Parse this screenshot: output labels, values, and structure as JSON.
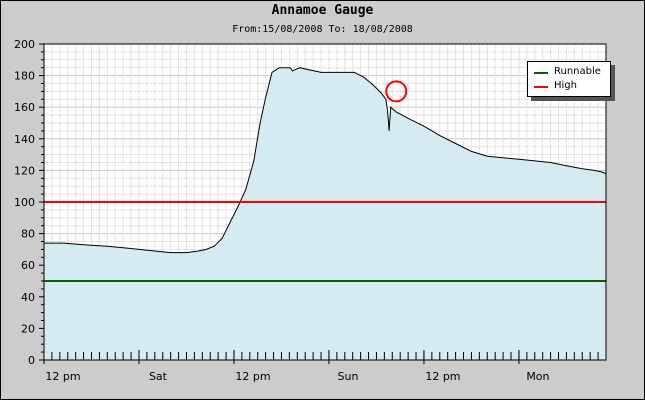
{
  "chart_data": {
    "type": "area",
    "title": "Annamoe Gauge",
    "subtitle": "From:15/08/2008 To: 18/08/2008",
    "xlabel": "",
    "ylabel": "",
    "xlim": [
      0,
      71
    ],
    "ylim": [
      0,
      200
    ],
    "y_ticks": [
      0,
      20,
      40,
      60,
      80,
      100,
      120,
      140,
      160,
      180,
      200
    ],
    "x_ticks": [
      {
        "at": 0,
        "label": "12 pm"
      },
      {
        "at": 12,
        "label": "Sat"
      },
      {
        "at": 24,
        "label": "12 pm"
      },
      {
        "at": 36,
        "label": "Sun"
      },
      {
        "at": 48,
        "label": "12 pm"
      },
      {
        "at": 60,
        "label": "Mon"
      }
    ],
    "grid": true,
    "legend": "top-right",
    "series": [
      {
        "name": "",
        "color": "#000000",
        "fill": "#d6eaf2",
        "x": [
          -0.4,
          2.5,
          5,
          8,
          10,
          12,
          14,
          16,
          18,
          19.5,
          20.5,
          21.5,
          22.5,
          23.5,
          24.5,
          25.5,
          26.5,
          27.3,
          28,
          28.8,
          29.7,
          30.6,
          31.1,
          31.4,
          32.3,
          35,
          38,
          39.2,
          40.4,
          41.6,
          42.6,
          43.2,
          43.4,
          43.5,
          43.6,
          43.8,
          44.5,
          46,
          48,
          50,
          52,
          54,
          56,
          58,
          60,
          62,
          64,
          66,
          68,
          69.5,
          70.5,
          71
        ],
        "values": [
          74,
          74,
          73,
          72,
          71,
          70,
          69,
          68,
          68,
          69,
          70,
          72,
          77,
          87,
          97,
          108,
          126,
          150,
          166,
          182,
          185,
          185,
          185,
          183,
          185,
          182,
          182,
          182,
          179,
          174,
          169,
          165,
          158,
          152,
          145,
          160,
          157,
          153,
          148,
          142,
          137,
          132,
          129,
          128,
          127,
          126,
          125,
          123,
          121,
          120,
          119,
          118
        ]
      },
      {
        "name": "Runnable",
        "color": "#006400",
        "values": [
          50
        ]
      },
      {
        "name": "High",
        "color": "#ff0000",
        "values": [
          100
        ]
      }
    ],
    "annotations": [
      {
        "type": "circle",
        "x": 44.5,
        "y": 170,
        "color": "#ff0000"
      }
    ]
  }
}
